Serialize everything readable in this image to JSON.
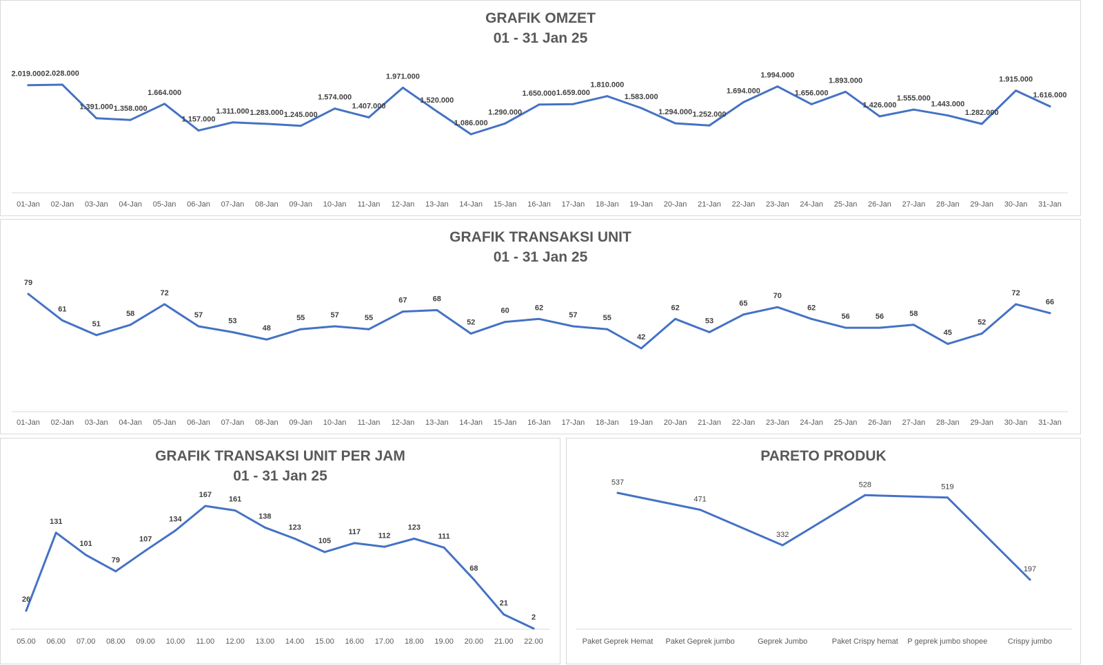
{
  "colors": {
    "line": "#4472c4",
    "axis": "#d9d9d9",
    "tick_text": "#595959",
    "label_text": "#404040",
    "title_text": "#595959"
  },
  "charts": {
    "omzet": {
      "title": "GRAFIK OMZET",
      "subtitle": "01 - 31 Jan 25",
      "chart_data": {
        "type": "line",
        "title": "GRAFIK OMZET",
        "subtitle": "01 - 31 Jan 25",
        "categories": [
          "01-Jan",
          "02-Jan",
          "03-Jan",
          "04-Jan",
          "05-Jan",
          "06-Jan",
          "07-Jan",
          "08-Jan",
          "09-Jan",
          "10-Jan",
          "11-Jan",
          "12-Jan",
          "13-Jan",
          "14-Jan",
          "15-Jan",
          "16-Jan",
          "17-Jan",
          "18-Jan",
          "19-Jan",
          "20-Jan",
          "21-Jan",
          "22-Jan",
          "23-Jan",
          "24-Jan",
          "25-Jan",
          "26-Jan",
          "27-Jan",
          "28-Jan",
          "29-Jan",
          "30-Jan",
          "31-Jan"
        ],
        "values": [
          2019000,
          2028000,
          1391000,
          1358000,
          1664000,
          1157000,
          1311000,
          1283000,
          1245000,
          1574000,
          1407000,
          1971000,
          1520000,
          1086000,
          1290000,
          1650000,
          1659000,
          1810000,
          1583000,
          1294000,
          1252000,
          1694000,
          1994000,
          1656000,
          1893000,
          1426000,
          1555000,
          1443000,
          1282000,
          1915000,
          1616000
        ],
        "data_labels": [
          "2.019.000",
          "2.028.000",
          "1.391.000",
          "1.358.000",
          "1.664.000",
          "1.157.000",
          "1.311.000",
          "1.283.000",
          "1.245.000",
          "1.574.000",
          "1.407.000",
          "1.971.000",
          "1.520.000",
          "1.086.000",
          "1.290.000",
          "1.650.000",
          "1.659.000",
          "1.810.000",
          "1.583.000",
          "1.294.000",
          "1.252.000",
          "1.694.000",
          "1.994.000",
          "1.656.000",
          "1.893.000",
          "1.426.000",
          "1.555.000",
          "1.443.000",
          "1.282.000",
          "1.915.000",
          "1.616.000"
        ],
        "grid": false,
        "legend": "none"
      }
    },
    "transaksi": {
      "title": "GRAFIK TRANSAKSI UNIT",
      "subtitle": "01 - 31 Jan 25",
      "chart_data": {
        "type": "line",
        "title": "GRAFIK TRANSAKSI UNIT",
        "subtitle": "01 - 31 Jan 25",
        "categories": [
          "01-Jan",
          "02-Jan",
          "03-Jan",
          "04-Jan",
          "05-Jan",
          "06-Jan",
          "07-Jan",
          "08-Jan",
          "09-Jan",
          "10-Jan",
          "11-Jan",
          "12-Jan",
          "13-Jan",
          "14-Jan",
          "15-Jan",
          "16-Jan",
          "17-Jan",
          "18-Jan",
          "19-Jan",
          "20-Jan",
          "21-Jan",
          "22-Jan",
          "23-Jan",
          "24-Jan",
          "25-Jan",
          "26-Jan",
          "27-Jan",
          "28-Jan",
          "29-Jan",
          "30-Jan",
          "31-Jan"
        ],
        "values": [
          79,
          61,
          51,
          58,
          72,
          57,
          53,
          48,
          55,
          57,
          55,
          67,
          68,
          52,
          60,
          62,
          57,
          55,
          42,
          62,
          53,
          65,
          70,
          62,
          56,
          56,
          58,
          45,
          52,
          72,
          66
        ],
        "data_labels": [
          "79",
          "61",
          "51",
          "58",
          "72",
          "57",
          "53",
          "48",
          "55",
          "57",
          "55",
          "67",
          "68",
          "52",
          "60",
          "62",
          "57",
          "55",
          "42",
          "62",
          "53",
          "65",
          "70",
          "62",
          "56",
          "56",
          "58",
          "45",
          "52",
          "72",
          "66"
        ],
        "grid": false,
        "legend": "none"
      }
    },
    "perjam": {
      "title": "GRAFIK TRANSAKSI UNIT PER JAM",
      "subtitle": "01 - 31 Jan 25",
      "chart_data": {
        "type": "line",
        "title": "GRAFIK TRANSAKSI UNIT PER JAM",
        "subtitle": "01 - 31 Jan 25",
        "categories": [
          "05.00",
          "06.00",
          "07.00",
          "08.00",
          "09.00",
          "10.00",
          "11.00",
          "12.00",
          "13.00",
          "14.00",
          "15.00",
          "16.00",
          "17.00",
          "18.00",
          "19.00",
          "20.00",
          "21.00",
          "22.00"
        ],
        "values": [
          26,
          131,
          101,
          79,
          107,
          134,
          167,
          161,
          138,
          123,
          105,
          117,
          112,
          123,
          111,
          68,
          21,
          2
        ],
        "data_labels": [
          "26",
          "131",
          "101",
          "79",
          "107",
          "134",
          "167",
          "161",
          "138",
          "123",
          "105",
          "117",
          "112",
          "123",
          "111",
          "68",
          "21",
          "2"
        ],
        "grid": false,
        "legend": "none"
      }
    },
    "pareto": {
      "title": "PARETO PRODUK",
      "subtitle": "",
      "chart_data": {
        "type": "line",
        "title": "PARETO PRODUK",
        "categories": [
          "Paket Geprek Hemat",
          "Paket Geprek jumbo",
          "Geprek Jumbo",
          "Paket Crispy hemat",
          "P geprek jumbo shopee",
          "Crispy jumbo"
        ],
        "values": [
          537,
          471,
          332,
          528,
          519,
          197
        ],
        "data_labels": [
          "537",
          "471",
          "332",
          "528",
          "519",
          "197"
        ],
        "grid": false,
        "legend": "none"
      }
    }
  }
}
